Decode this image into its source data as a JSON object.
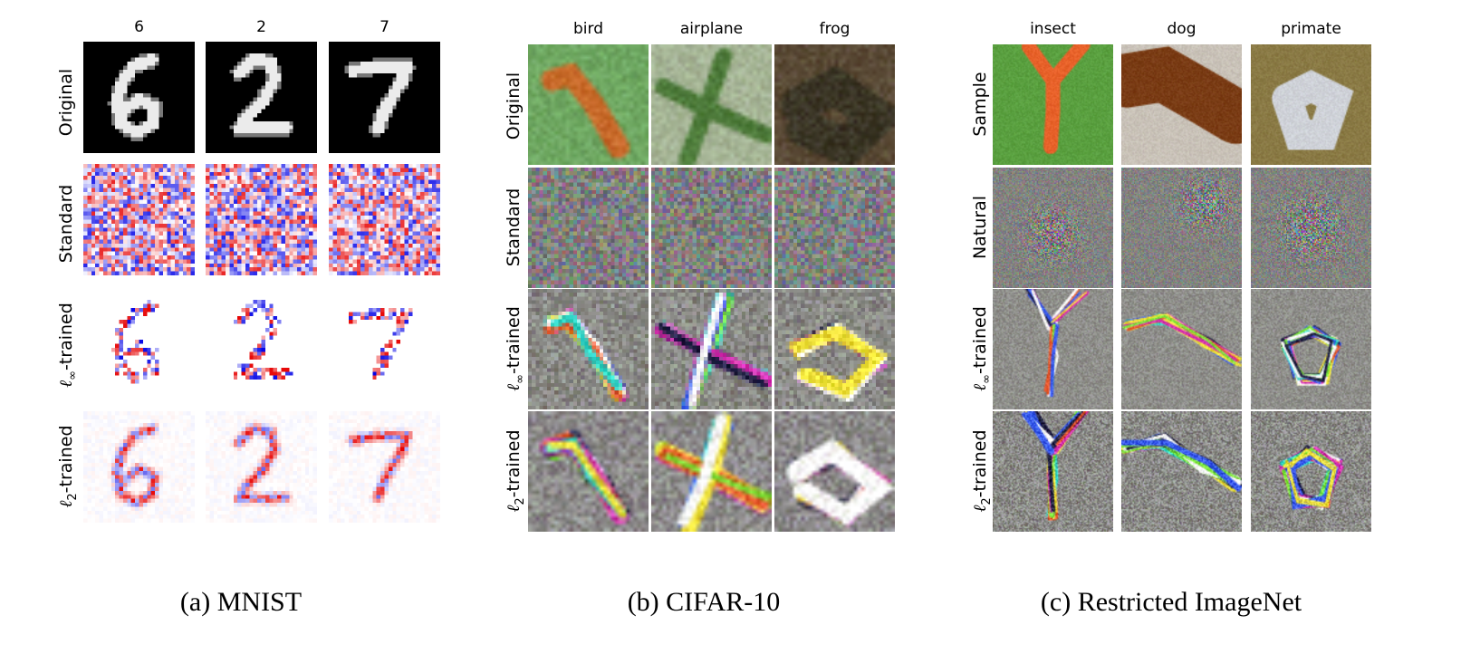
{
  "panels": [
    {
      "id": "mnist",
      "caption": "(a) MNIST",
      "columns": [
        "6",
        "2",
        "7"
      ],
      "rows": [
        {
          "kind": "text",
          "text": "Original"
        },
        {
          "kind": "text",
          "text": "Standard"
        },
        {
          "kind": "norm",
          "sub": "∞",
          "suffix": "-trained"
        },
        {
          "kind": "norm",
          "sub": "2",
          "suffix": "-trained"
        }
      ]
    },
    {
      "id": "cifar",
      "caption": "(b) CIFAR-10",
      "columns": [
        "bird",
        "airplane",
        "frog"
      ],
      "rows": [
        {
          "kind": "text",
          "text": "Original"
        },
        {
          "kind": "text",
          "text": "Standard"
        },
        {
          "kind": "norm",
          "sub": "∞",
          "suffix": "-trained"
        },
        {
          "kind": "norm",
          "sub": "2",
          "suffix": "-trained"
        }
      ]
    },
    {
      "id": "imagenet",
      "caption": "(c) Restricted ImageNet",
      "columns": [
        "insect",
        "dog",
        "primate"
      ],
      "rows": [
        {
          "kind": "text",
          "text": "Sample"
        },
        {
          "kind": "text",
          "text": "Natural"
        },
        {
          "kind": "norm",
          "sub": "∞",
          "suffix": "-trained"
        },
        {
          "kind": "norm",
          "sub": "2",
          "suffix": "-trained"
        }
      ]
    }
  ],
  "norm_symbol": "ℓ",
  "colors": {
    "positive": "#e60000",
    "negative": "#0000e6",
    "cifar_bird_bg": "#6fa862",
    "cifar_airplane_bg": "#a6b596",
    "cifar_frog_bg": "#5a4a36",
    "imagenet_leaf": "#5aa040",
    "imagenet_dog": "#7a3c15",
    "imagenet_monkey_fur": "#8a7a45"
  }
}
